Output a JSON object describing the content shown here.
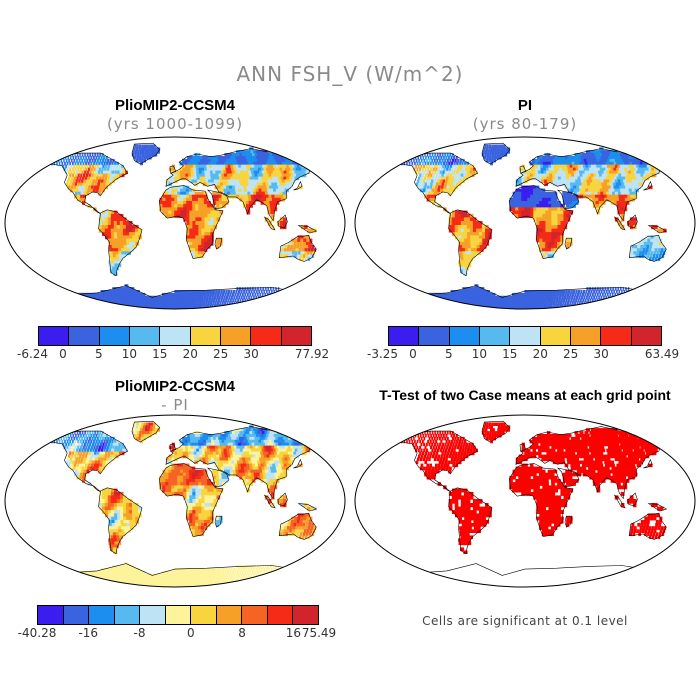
{
  "figure": {
    "title": "ANN FSH_V (W/m^2)"
  },
  "colors": {
    "pos_scale": [
      "#3b1eef",
      "#3a63e0",
      "#1c8ef0",
      "#56baf0",
      "#bde3f4",
      "#f8d43f",
      "#f7a028",
      "#f52a17",
      "#d1242d"
    ],
    "diff_scale": [
      "#3b1eef",
      "#3a63e0",
      "#1c8ef0",
      "#56baf0",
      "#bde3f4",
      "#fdf39b",
      "#f8d43f",
      "#f7a028",
      "#f56424",
      "#f52a17",
      "#d1242d"
    ],
    "signif": "#ff0000",
    "land_outline": "#000000"
  },
  "panels": [
    {
      "title": "PlioMIP2-CCSM4",
      "subtitle": "(yrs 1000-1099)",
      "colorbar": {
        "labels": [
          "-6.24",
          "0",
          "5",
          "10",
          "15",
          "20",
          "25",
          "30",
          "77.92"
        ]
      }
    },
    {
      "title": "PI",
      "subtitle": "(yrs 80-179)",
      "colorbar": {
        "labels": [
          "-3.25",
          "0",
          "5",
          "10",
          "15",
          "20",
          "25",
          "30",
          "63.49"
        ]
      }
    },
    {
      "title": "PlioMIP2-CCSM4",
      "subtitle": "- PI",
      "colorbar": {
        "labels": [
          "-40.28",
          "-16",
          "-8",
          "0",
          "8",
          "16",
          "75.49"
        ]
      }
    },
    {
      "title": "T-Test of two Case means at each grid point",
      "note": "Cells are significant at 0.1 level"
    }
  ]
}
